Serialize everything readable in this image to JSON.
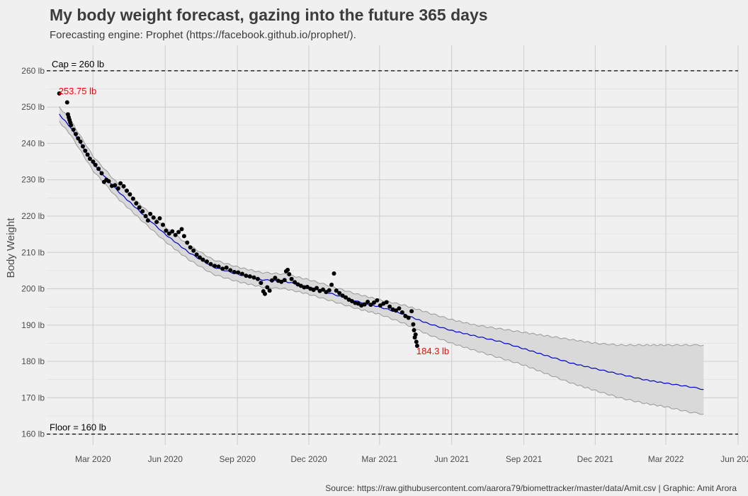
{
  "header": {
    "title": "My body weight forecast, gazing into the future 365 days",
    "subtitle": "Forecasting engine: Prophet (https://facebook.github.io/prophet/).",
    "caption": "Source: https://raw.githubusercontent.com/aarora79/biomettracker/master/data/Amit.csv | Graphic: Amit Arora"
  },
  "chart_data": {
    "type": "line",
    "title": "My body weight forecast, gazing into the future 365 days",
    "xlabel": "",
    "ylabel": "Body Weight",
    "ylim": [
      157,
      267
    ],
    "xlim": [
      "2020-01-02",
      "2022-06-01"
    ],
    "grid": true,
    "y_ticks": [
      {
        "value": 160,
        "label": "160 lb"
      },
      {
        "value": 170,
        "label": "170 lb"
      },
      {
        "value": 180,
        "label": "180 lb"
      },
      {
        "value": 190,
        "label": "190 lb"
      },
      {
        "value": 200,
        "label": "200 lb"
      },
      {
        "value": 210,
        "label": "210 lb"
      },
      {
        "value": 220,
        "label": "220 lb"
      },
      {
        "value": 230,
        "label": "230 lb"
      },
      {
        "value": 240,
        "label": "240 lb"
      },
      {
        "value": 250,
        "label": "250 lb"
      },
      {
        "value": 260,
        "label": "260 lb"
      }
    ],
    "x_ticks": [
      {
        "date": "2020-03-01",
        "label": "Mar 2020"
      },
      {
        "date": "2020-06-01",
        "label": "Jun 2020"
      },
      {
        "date": "2020-09-01",
        "label": "Sep 2020"
      },
      {
        "date": "2020-12-01",
        "label": "Dec 2020"
      },
      {
        "date": "2021-03-01",
        "label": "Mar 2021"
      },
      {
        "date": "2021-06-01",
        "label": "Jun 2021"
      },
      {
        "date": "2021-09-01",
        "label": "Sep 2021"
      },
      {
        "date": "2021-12-01",
        "label": "Dec 2021"
      },
      {
        "date": "2022-03-01",
        "label": "Mar 2022"
      },
      {
        "date": "2022-06-01",
        "label": "Jun 2022"
      }
    ],
    "reference_lines": [
      {
        "value": 260,
        "label": "Cap = 260 lb"
      },
      {
        "value": 160,
        "label": "Floor = 160 lb"
      }
    ],
    "annotations": [
      {
        "date": "2020-01-18",
        "value": 253.75,
        "label": "253.75 lb"
      },
      {
        "date": "2021-04-18",
        "value": 184.3,
        "label": "184.3 lb"
      }
    ],
    "series": [
      {
        "name": "Observed weight",
        "style": "points",
        "color": "#000000",
        "points": [
          [
            "2020-01-18",
            253.75
          ],
          [
            "2020-01-28",
            251.3
          ],
          [
            "2020-01-29",
            248.0
          ],
          [
            "2020-01-30",
            247.2
          ],
          [
            "2020-01-31",
            246.5
          ],
          [
            "2020-02-01",
            245.8
          ],
          [
            "2020-02-02",
            245.0
          ],
          [
            "2020-02-05",
            243.8
          ],
          [
            "2020-02-08",
            242.6
          ],
          [
            "2020-02-11",
            241.4
          ],
          [
            "2020-02-14",
            240.5
          ],
          [
            "2020-02-17",
            239.2
          ],
          [
            "2020-02-20",
            238.0
          ],
          [
            "2020-02-23",
            236.9
          ],
          [
            "2020-02-26",
            235.8
          ],
          [
            "2020-03-01",
            235.0
          ],
          [
            "2020-03-04",
            234.1
          ],
          [
            "2020-03-08",
            233.0
          ],
          [
            "2020-03-12",
            231.8
          ],
          [
            "2020-03-15",
            229.4
          ],
          [
            "2020-03-18",
            230.0
          ],
          [
            "2020-03-21",
            229.6
          ],
          [
            "2020-03-25",
            228.3
          ],
          [
            "2020-03-29",
            228.5
          ],
          [
            "2020-04-02",
            227.6
          ],
          [
            "2020-04-05",
            229.0
          ],
          [
            "2020-04-09",
            228.2
          ],
          [
            "2020-04-13",
            227.0
          ],
          [
            "2020-04-17",
            226.0
          ],
          [
            "2020-04-21",
            224.8
          ],
          [
            "2020-04-25",
            223.5
          ],
          [
            "2020-04-29",
            222.4
          ],
          [
            "2020-05-03",
            221.3
          ],
          [
            "2020-05-07",
            220.0
          ],
          [
            "2020-05-10",
            218.8
          ],
          [
            "2020-05-13",
            220.6
          ],
          [
            "2020-05-17",
            219.6
          ],
          [
            "2020-05-21",
            218.4
          ],
          [
            "2020-05-25",
            219.4
          ],
          [
            "2020-05-29",
            217.6
          ],
          [
            "2020-06-02",
            216.0
          ],
          [
            "2020-06-06",
            215.2
          ],
          [
            "2020-06-10",
            215.8
          ],
          [
            "2020-06-14",
            214.8
          ],
          [
            "2020-06-18",
            215.6
          ],
          [
            "2020-06-22",
            216.4
          ],
          [
            "2020-06-25",
            214.5
          ],
          [
            "2020-06-29",
            212.7
          ],
          [
            "2020-07-03",
            211.4
          ],
          [
            "2020-07-07",
            210.5
          ],
          [
            "2020-07-11",
            209.4
          ],
          [
            "2020-07-15",
            208.6
          ],
          [
            "2020-07-19",
            208.0
          ],
          [
            "2020-07-24",
            207.5
          ],
          [
            "2020-07-29",
            206.8
          ],
          [
            "2020-08-03",
            206.3
          ],
          [
            "2020-08-08",
            206.1
          ],
          [
            "2020-08-13",
            205.5
          ],
          [
            "2020-08-18",
            205.8
          ],
          [
            "2020-08-23",
            205.1
          ],
          [
            "2020-08-28",
            204.6
          ],
          [
            "2020-09-02",
            204.5
          ],
          [
            "2020-09-07",
            204.1
          ],
          [
            "2020-09-12",
            203.6
          ],
          [
            "2020-09-17",
            203.4
          ],
          [
            "2020-09-22",
            203.1
          ],
          [
            "2020-09-27",
            202.7
          ],
          [
            "2020-10-01",
            201.6
          ],
          [
            "2020-10-04",
            199.3
          ],
          [
            "2020-10-06",
            198.6
          ],
          [
            "2020-10-09",
            200.4
          ],
          [
            "2020-10-12",
            199.5
          ],
          [
            "2020-10-15",
            202.3
          ],
          [
            "2020-10-19",
            203.0
          ],
          [
            "2020-10-23",
            202.2
          ],
          [
            "2020-10-27",
            201.9
          ],
          [
            "2020-10-31",
            202.4
          ],
          [
            "2020-11-02",
            204.8
          ],
          [
            "2020-11-04",
            205.2
          ],
          [
            "2020-11-06",
            204.0
          ],
          [
            "2020-11-09",
            202.7
          ],
          [
            "2020-11-13",
            201.8
          ],
          [
            "2020-11-17",
            201.2
          ],
          [
            "2020-11-21",
            200.8
          ],
          [
            "2020-11-25",
            200.4
          ],
          [
            "2020-11-29",
            200.5
          ],
          [
            "2020-12-03",
            200.0
          ],
          [
            "2020-12-07",
            199.7
          ],
          [
            "2020-12-11",
            200.2
          ],
          [
            "2020-12-15",
            199.4
          ],
          [
            "2020-12-19",
            199.8
          ],
          [
            "2020-12-23",
            199.1
          ],
          [
            "2020-12-27",
            199.6
          ],
          [
            "2020-12-30",
            201.1
          ],
          [
            "2021-01-02",
            204.2
          ],
          [
            "2021-01-05",
            199.5
          ],
          [
            "2021-01-09",
            198.8
          ],
          [
            "2021-01-13",
            198.1
          ],
          [
            "2021-01-17",
            197.6
          ],
          [
            "2021-01-21",
            197.0
          ],
          [
            "2021-01-25",
            196.6
          ],
          [
            "2021-01-29",
            196.1
          ],
          [
            "2021-02-02",
            195.9
          ],
          [
            "2021-02-06",
            195.4
          ],
          [
            "2021-02-10",
            195.7
          ],
          [
            "2021-02-14",
            196.4
          ],
          [
            "2021-02-18",
            195.6
          ],
          [
            "2021-02-22",
            196.2
          ],
          [
            "2021-02-26",
            196.8
          ],
          [
            "2021-03-02",
            195.4
          ],
          [
            "2021-03-06",
            195.9
          ],
          [
            "2021-03-10",
            196.3
          ],
          [
            "2021-03-14",
            195.1
          ],
          [
            "2021-03-18",
            194.3
          ],
          [
            "2021-03-22",
            194.0
          ],
          [
            "2021-03-26",
            194.6
          ],
          [
            "2021-03-30",
            193.5
          ],
          [
            "2021-04-03",
            192.5
          ],
          [
            "2021-04-07",
            192.0
          ],
          [
            "2021-04-11",
            193.8
          ],
          [
            "2021-04-13",
            190.2
          ],
          [
            "2021-04-14",
            188.6
          ],
          [
            "2021-04-15",
            186.6
          ],
          [
            "2021-04-16",
            187.4
          ],
          [
            "2021-04-17",
            185.4
          ],
          [
            "2021-04-18",
            184.3
          ]
        ]
      },
      {
        "name": "Prophet forecast (yhat)",
        "style": "line",
        "color": "#0000cc",
        "points": [
          [
            "2020-01-18",
            248.0
          ],
          [
            "2020-02-01",
            244.5
          ],
          [
            "2020-03-01",
            234.5
          ],
          [
            "2020-04-01",
            227.0
          ],
          [
            "2020-05-01",
            221.0
          ],
          [
            "2020-06-01",
            215.0
          ],
          [
            "2020-07-01",
            210.0
          ],
          [
            "2020-08-01",
            206.0
          ],
          [
            "2020-09-01",
            204.0
          ],
          [
            "2020-10-01",
            202.5
          ],
          [
            "2020-11-01",
            202.0
          ],
          [
            "2020-12-01",
            200.5
          ],
          [
            "2021-01-01",
            198.5
          ],
          [
            "2021-02-01",
            196.5
          ],
          [
            "2021-03-01",
            195.0
          ],
          [
            "2021-04-01",
            193.0
          ],
          [
            "2021-05-01",
            190.5
          ],
          [
            "2021-06-01",
            188.5
          ],
          [
            "2021-07-01",
            187.0
          ],
          [
            "2021-08-01",
            185.5
          ],
          [
            "2021-09-01",
            183.5
          ],
          [
            "2021-10-01",
            181.5
          ],
          [
            "2021-11-01",
            179.5
          ],
          [
            "2021-12-01",
            178.0
          ],
          [
            "2022-01-01",
            176.5
          ],
          [
            "2022-02-01",
            175.0
          ],
          [
            "2022-03-01",
            174.0
          ],
          [
            "2022-04-01",
            173.0
          ],
          [
            "2022-04-18",
            172.3
          ]
        ]
      },
      {
        "name": "Forecast upper bound",
        "style": "band-edge",
        "color": "#999999",
        "points": [
          [
            "2020-01-18",
            250.0
          ],
          [
            "2020-02-01",
            246.5
          ],
          [
            "2020-03-01",
            236.5
          ],
          [
            "2020-04-01",
            229.0
          ],
          [
            "2020-05-01",
            223.0
          ],
          [
            "2020-06-01",
            217.0
          ],
          [
            "2020-07-01",
            212.0
          ],
          [
            "2020-08-01",
            208.0
          ],
          [
            "2020-09-01",
            206.0
          ],
          [
            "2020-10-01",
            204.5
          ],
          [
            "2020-11-01",
            204.0
          ],
          [
            "2020-12-01",
            202.5
          ],
          [
            "2021-01-01",
            200.5
          ],
          [
            "2021-02-01",
            198.5
          ],
          [
            "2021-03-01",
            197.0
          ],
          [
            "2021-04-01",
            195.5
          ],
          [
            "2021-05-01",
            193.5
          ],
          [
            "2021-06-01",
            191.5
          ],
          [
            "2021-07-01",
            190.0
          ],
          [
            "2021-08-01",
            189.0
          ],
          [
            "2021-09-01",
            188.0
          ],
          [
            "2021-10-01",
            187.0
          ],
          [
            "2021-11-01",
            186.0
          ],
          [
            "2021-12-01",
            185.0
          ],
          [
            "2022-01-01",
            184.5
          ],
          [
            "2022-02-01",
            184.5
          ],
          [
            "2022-03-01",
            184.5
          ],
          [
            "2022-04-01",
            184.5
          ],
          [
            "2022-04-18",
            184.5
          ]
        ]
      },
      {
        "name": "Forecast lower bound",
        "style": "band-edge",
        "color": "#999999",
        "points": [
          [
            "2020-01-18",
            246.0
          ],
          [
            "2020-02-01",
            242.5
          ],
          [
            "2020-03-01",
            232.5
          ],
          [
            "2020-04-01",
            225.0
          ],
          [
            "2020-05-01",
            219.0
          ],
          [
            "2020-06-01",
            213.0
          ],
          [
            "2020-07-01",
            208.0
          ],
          [
            "2020-08-01",
            204.0
          ],
          [
            "2020-09-01",
            202.0
          ],
          [
            "2020-10-01",
            200.5
          ],
          [
            "2020-11-01",
            200.0
          ],
          [
            "2020-12-01",
            198.5
          ],
          [
            "2021-01-01",
            196.5
          ],
          [
            "2021-02-01",
            194.5
          ],
          [
            "2021-03-01",
            193.0
          ],
          [
            "2021-04-01",
            190.5
          ],
          [
            "2021-05-01",
            187.5
          ],
          [
            "2021-06-01",
            185.0
          ],
          [
            "2021-07-01",
            183.0
          ],
          [
            "2021-08-01",
            181.0
          ],
          [
            "2021-09-01",
            179.0
          ],
          [
            "2021-10-01",
            176.5
          ],
          [
            "2021-11-01",
            174.0
          ],
          [
            "2021-12-01",
            172.0
          ],
          [
            "2022-01-01",
            170.0
          ],
          [
            "2022-02-01",
            168.5
          ],
          [
            "2022-03-01",
            167.5
          ],
          [
            "2022-04-01",
            166.0
          ],
          [
            "2022-04-18",
            165.5
          ]
        ]
      }
    ],
    "colors": {
      "background": "#f0f0f0",
      "grid": "#d2d2d2",
      "band_fill": "#d9d9d9",
      "band_edge": "#999999",
      "forecast_line": "#0000cc",
      "points": "#000000",
      "annotation": "#ff0000",
      "reference_line": "#000000"
    }
  }
}
